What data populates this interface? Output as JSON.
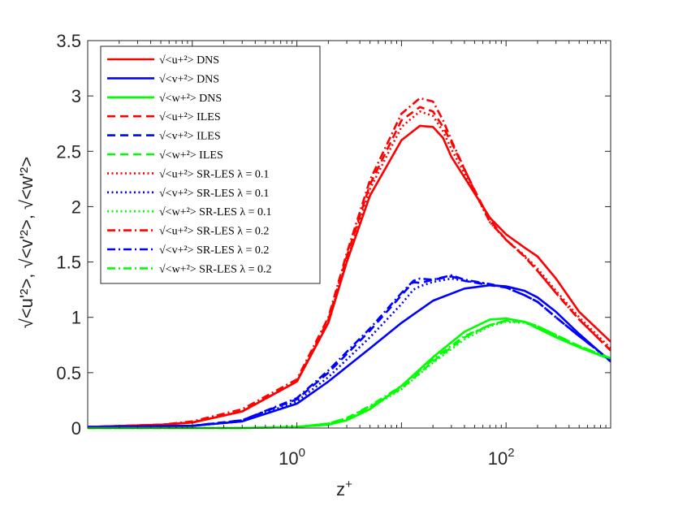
{
  "chart_data": {
    "type": "line",
    "x_scale": "log",
    "xlabel": "z",
    "xlabel_sup": "+",
    "ylabel": "√<u'²>, √<v'²>, √<w'²>",
    "xlim": [
      0.01,
      1000
    ],
    "ylim": [
      0,
      3.5
    ],
    "xticks": [
      {
        "value": 1,
        "base": "10",
        "exp": "0"
      },
      {
        "value": 100,
        "base": "10",
        "exp": "2"
      }
    ],
    "yticks": [
      "0",
      "0.5",
      "1",
      "1.5",
      "2",
      "2.5",
      "3",
      "3.5"
    ],
    "legend_position": "top-left",
    "legend_labels": {
      "u_prefix": "√<u+²>",
      "v_prefix": "√<v+²>",
      "w_prefix": "√<w+²>",
      "dns": "DNS",
      "iles": "ILES",
      "srles": "SR-LES",
      "lambda_sym": "λ",
      "lambda1": "0.1",
      "lambda2": "0.2"
    },
    "series": [
      {
        "name": "u DNS",
        "color": "#ff0000",
        "dash": "solid",
        "x": [
          0.01,
          0.05,
          0.1,
          0.3,
          1,
          2,
          3,
          5,
          10,
          15,
          20,
          25,
          30,
          50,
          70,
          100,
          150,
          200,
          300,
          500,
          1000
        ],
        "y": [
          0.01,
          0.03,
          0.05,
          0.15,
          0.42,
          0.95,
          1.5,
          2.1,
          2.6,
          2.73,
          2.72,
          2.62,
          2.45,
          2.12,
          1.9,
          1.75,
          1.63,
          1.55,
          1.35,
          1.05,
          0.78
        ]
      },
      {
        "name": "v DNS",
        "color": "#0000ff",
        "dash": "solid",
        "x": [
          0.01,
          0.1,
          0.3,
          1,
          2,
          5,
          10,
          20,
          40,
          70,
          100,
          150,
          200,
          300,
          500,
          1000
        ],
        "y": [
          0.01,
          0.02,
          0.06,
          0.22,
          0.42,
          0.72,
          0.95,
          1.15,
          1.26,
          1.29,
          1.28,
          1.24,
          1.18,
          1.05,
          0.85,
          0.6
        ]
      },
      {
        "name": "w DNS",
        "color": "#00ff00",
        "dash": "solid",
        "x": [
          0.01,
          0.3,
          1,
          2,
          3,
          5,
          10,
          20,
          40,
          70,
          100,
          150,
          200,
          300,
          500,
          1000
        ],
        "y": [
          0,
          0,
          0.01,
          0.03,
          0.07,
          0.17,
          0.38,
          0.64,
          0.87,
          0.98,
          0.99,
          0.96,
          0.9,
          0.82,
          0.73,
          0.62
        ]
      },
      {
        "name": "u ILES",
        "color": "#ff0000",
        "dash": "dashed",
        "x": [
          0.01,
          0.05,
          0.1,
          0.3,
          1,
          2,
          3,
          5,
          10,
          15,
          20,
          25,
          30,
          50,
          70,
          100,
          150,
          200,
          300,
          500,
          1000
        ],
        "y": [
          0.01,
          0.03,
          0.05,
          0.15,
          0.42,
          0.98,
          1.55,
          2.2,
          2.78,
          2.9,
          2.86,
          2.72,
          2.58,
          2.15,
          1.88,
          1.7,
          1.55,
          1.42,
          1.22,
          0.98,
          0.7
        ]
      },
      {
        "name": "v ILES",
        "color": "#0000ff",
        "dash": "dashed",
        "x": [
          0.01,
          0.1,
          0.3,
          1,
          2,
          5,
          10,
          13,
          15,
          20,
          30,
          40,
          70,
          100,
          150,
          200,
          300,
          500,
          1000
        ],
        "y": [
          0.01,
          0.02,
          0.07,
          0.26,
          0.5,
          0.88,
          1.2,
          1.32,
          1.31,
          1.34,
          1.37,
          1.33,
          1.29,
          1.27,
          1.2,
          1.14,
          1.0,
          0.83,
          0.61
        ]
      },
      {
        "name": "w ILES",
        "color": "#00ff00",
        "dash": "dashed",
        "x": [
          0.01,
          0.3,
          1,
          2,
          3,
          5,
          10,
          20,
          40,
          70,
          100,
          150,
          200,
          300,
          500,
          1000
        ],
        "y": [
          0,
          0,
          0.01,
          0.04,
          0.09,
          0.19,
          0.36,
          0.6,
          0.82,
          0.93,
          0.97,
          0.96,
          0.92,
          0.84,
          0.74,
          0.63
        ]
      },
      {
        "name": "u SR-LES λ=0.1",
        "color": "#ff0000",
        "dash": "dotted",
        "x": [
          0.01,
          0.05,
          0.1,
          0.3,
          1,
          2,
          3,
          5,
          10,
          15,
          20,
          25,
          30,
          50,
          70,
          100,
          150,
          200,
          300,
          500,
          1000
        ],
        "y": [
          0.01,
          0.03,
          0.05,
          0.15,
          0.42,
          0.96,
          1.52,
          2.16,
          2.72,
          2.86,
          2.82,
          2.68,
          2.52,
          2.13,
          1.86,
          1.7,
          1.56,
          1.44,
          1.24,
          1.0,
          0.72
        ]
      },
      {
        "name": "v SR-LES λ=0.1",
        "color": "#0000ff",
        "dash": "dotted",
        "x": [
          0.01,
          0.1,
          0.3,
          1,
          2,
          5,
          10,
          13,
          15,
          20,
          30,
          40,
          70,
          100,
          150,
          200,
          300,
          500,
          1000
        ],
        "y": [
          0.01,
          0.02,
          0.06,
          0.24,
          0.46,
          0.82,
          1.12,
          1.25,
          1.28,
          1.32,
          1.35,
          1.33,
          1.3,
          1.27,
          1.2,
          1.14,
          1.0,
          0.83,
          0.61
        ]
      },
      {
        "name": "w SR-LES λ=0.1",
        "color": "#00ff00",
        "dash": "dotted",
        "x": [
          0.01,
          0.3,
          1,
          2,
          3,
          5,
          10,
          20,
          40,
          70,
          100,
          150,
          200,
          300,
          500,
          1000
        ],
        "y": [
          0,
          0,
          0.01,
          0.04,
          0.08,
          0.18,
          0.35,
          0.59,
          0.8,
          0.92,
          0.96,
          0.95,
          0.91,
          0.83,
          0.74,
          0.63
        ]
      },
      {
        "name": "u SR-LES λ=0.2",
        "color": "#ff0000",
        "dash": "dashdot",
        "x": [
          0.01,
          0.05,
          0.1,
          0.3,
          1,
          2,
          3,
          5,
          10,
          15,
          20,
          25,
          30,
          50,
          70,
          100,
          150,
          200,
          300,
          500,
          1000
        ],
        "y": [
          0.01,
          0.03,
          0.06,
          0.17,
          0.44,
          1.0,
          1.58,
          2.24,
          2.84,
          2.98,
          2.95,
          2.78,
          2.6,
          2.14,
          1.86,
          1.7,
          1.55,
          1.42,
          1.22,
          0.98,
          0.7
        ]
      },
      {
        "name": "v SR-LES λ=0.2",
        "color": "#0000ff",
        "dash": "dashdot",
        "x": [
          0.01,
          0.1,
          0.3,
          1,
          2,
          5,
          10,
          13,
          15,
          20,
          30,
          40,
          70,
          100,
          150,
          200,
          300,
          500,
          1000
        ],
        "y": [
          0.01,
          0.02,
          0.07,
          0.27,
          0.52,
          0.9,
          1.22,
          1.33,
          1.35,
          1.34,
          1.38,
          1.34,
          1.3,
          1.27,
          1.2,
          1.14,
          1.0,
          0.83,
          0.61
        ]
      },
      {
        "name": "w SR-LES λ=0.2",
        "color": "#00ff00",
        "dash": "dashdot",
        "x": [
          0.01,
          0.3,
          1,
          2,
          3,
          5,
          10,
          20,
          40,
          70,
          100,
          150,
          200,
          300,
          500,
          1000
        ],
        "y": [
          0,
          0,
          0.01,
          0.04,
          0.09,
          0.2,
          0.38,
          0.62,
          0.83,
          0.93,
          0.97,
          0.96,
          0.92,
          0.84,
          0.74,
          0.63
        ]
      }
    ]
  }
}
